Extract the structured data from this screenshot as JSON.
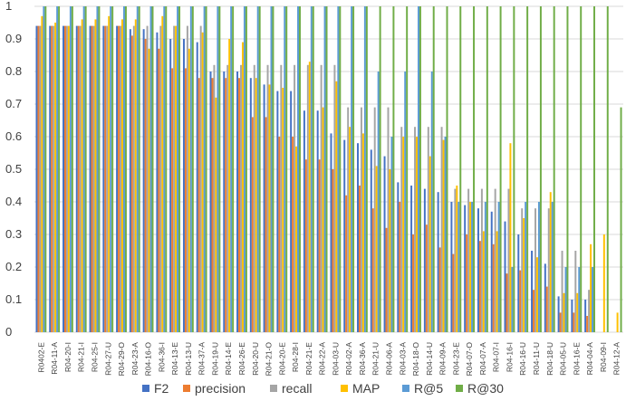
{
  "chart_data": {
    "type": "bar",
    "title": "",
    "xlabel": "",
    "ylabel": "",
    "ylim": [
      0,
      1
    ],
    "yticks": [
      "0",
      "0.1",
      "0.2",
      "0.3",
      "0.4",
      "0.5",
      "0.6",
      "0.7",
      "0.8",
      "0.9",
      "1"
    ],
    "grid": true,
    "legend_position": "bottom",
    "categories": [
      "R0402-E",
      "R04-11-A",
      "R04-20-I",
      "R04-21-I",
      "R04-25-I",
      "R04-27-U",
      "R04-29-O",
      "R04-23-A",
      "R04-16-O",
      "R04-36-I",
      "R04-13-E",
      "R04-13-U",
      "R04-37-A",
      "R04-19-U",
      "R04-14-E",
      "R04-26-E",
      "R04-20-U",
      "R04-21-O",
      "R04-20-E",
      "R04-28-I",
      "R04-21-E",
      "R04-22-A",
      "R04-03-U",
      "R04-02-A",
      "R04-36-A",
      "R04-21-U",
      "R04-06-A",
      "R04-03-A",
      "R04-18-O",
      "R04-14-U",
      "R04-09-A",
      "R04-23-E",
      "R04-07-O",
      "R04-07-A",
      "R04-07-I",
      "R04-16-I",
      "R04-16-U",
      "R04-11-U",
      "R04-18-U",
      "R04-05-U",
      "R04-16-E",
      "R04-04-A",
      "R04-09-I",
      "R04-12-A"
    ],
    "category_labels_shown": [
      "R0402-E",
      "R04-11-A",
      "R04-20-I",
      "R04-21-I",
      "R04-25-I",
      "R04-27-U",
      "R04-29-O",
      "R04-23-A",
      "R04-16-O",
      "R04-36-I",
      "R04-13-E",
      "R04-13-U",
      "R04-37-A",
      "R04-19-U",
      "R04-14-E",
      "R04-26-E",
      "R04-20-U",
      "R04-21-O",
      "R04-20-E",
      "R04-28-I",
      "R04-21-E",
      "R04-22-A",
      "R04-03-U",
      "R04-02-A",
      "R04-36-A",
      "R04-21-U",
      "R04-06-A",
      "R04-03-A",
      "R04-18-O",
      "R04-14-U",
      "R04-09-A",
      "R04-23-E",
      "R04-07-O",
      "R04-07-A",
      "R04-07-I",
      "R04-16-I",
      "R04-16-U",
      "R04-11-U",
      "R04-18-U",
      "R04-05-U",
      "R04-16-E",
      "R04-04-A",
      "R04-09-I",
      "R04-12-A"
    ],
    "series": [
      {
        "name": "F2",
        "color": "#4472c4",
        "values": [
          0.94,
          0.94,
          0.94,
          0.94,
          0.94,
          0.94,
          0.94,
          0.93,
          0.93,
          0.92,
          0.9,
          0.9,
          0.89,
          0.8,
          0.8,
          0.8,
          0.78,
          0.76,
          0.74,
          0.74,
          0.68,
          0.68,
          0.61,
          0.59,
          0.58,
          0.56,
          0.54,
          0.46,
          0.45,
          0.44,
          0.43,
          0.4,
          0.39,
          0.38,
          0.37,
          0.34,
          0.3,
          0.25,
          0.21,
          0.11,
          0.1,
          0.1,
          0.0,
          0.0
        ]
      },
      {
        "name": "precision",
        "color": "#ed7d31",
        "values": [
          0.94,
          0.94,
          0.94,
          0.94,
          0.94,
          0.94,
          0.94,
          0.91,
          0.9,
          0.87,
          0.81,
          0.81,
          0.78,
          0.78,
          0.78,
          0.78,
          0.66,
          0.66,
          0.6,
          0.6,
          0.53,
          0.53,
          0.5,
          0.42,
          0.45,
          0.38,
          0.32,
          0.4,
          0.3,
          0.33,
          0.26,
          0.24,
          0.3,
          0.28,
          0.27,
          0.18,
          0.19,
          0.13,
          0.14,
          0.06,
          0.06,
          0.05,
          0.0,
          0.0
        ]
      },
      {
        "name": "recall",
        "color": "#a5a5a5",
        "values": [
          0.94,
          0.94,
          0.94,
          0.94,
          0.94,
          0.94,
          0.94,
          0.94,
          0.94,
          0.94,
          0.94,
          0.94,
          0.94,
          0.82,
          0.82,
          0.82,
          0.82,
          0.82,
          0.82,
          0.82,
          0.82,
          0.82,
          0.82,
          0.69,
          0.69,
          0.69,
          0.69,
          0.63,
          0.63,
          0.63,
          0.63,
          0.44,
          0.44,
          0.44,
          0.44,
          0.44,
          0.38,
          0.38,
          0.38,
          0.25,
          0.25,
          0.13,
          0.0,
          0.0
        ]
      },
      {
        "name": "MAP",
        "color": "#ffc000",
        "values": [
          0.97,
          0.95,
          0.94,
          0.96,
          0.96,
          0.97,
          0.96,
          0.96,
          0.87,
          0.97,
          0.94,
          0.87,
          0.92,
          0.72,
          0.9,
          0.89,
          0.78,
          0.76,
          0.75,
          0.57,
          0.83,
          0.69,
          0.77,
          0.63,
          0.61,
          0.51,
          0.5,
          0.6,
          0.6,
          0.54,
          0.59,
          0.45,
          0.4,
          0.31,
          0.31,
          0.58,
          0.35,
          0.23,
          0.43,
          0.12,
          0.12,
          0.27,
          0.3,
          0.06
        ]
      },
      {
        "name": "R@5",
        "color": "#5b9bd5",
        "values": [
          1.0,
          1.0,
          1.0,
          1.0,
          1.0,
          1.0,
          1.0,
          1.0,
          1.0,
          1.0,
          1.0,
          1.0,
          1.0,
          1.0,
          1.0,
          1.0,
          1.0,
          1.0,
          1.0,
          1.0,
          1.0,
          1.0,
          1.0,
          1.0,
          1.0,
          0.8,
          0.6,
          0.8,
          1.0,
          0.8,
          0.6,
          0.4,
          0.4,
          0.4,
          0.4,
          0.2,
          0.4,
          0.4,
          0.4,
          0.2,
          0.2,
          0.2,
          0.0,
          0.0
        ]
      },
      {
        "name": "R@30",
        "color": "#70ad47",
        "values": [
          1.0,
          1.0,
          1.0,
          1.0,
          1.0,
          1.0,
          1.0,
          1.0,
          1.0,
          1.0,
          1.0,
          1.0,
          1.0,
          1.0,
          1.0,
          1.0,
          1.0,
          1.0,
          1.0,
          1.0,
          1.0,
          1.0,
          1.0,
          1.0,
          1.0,
          1.0,
          1.0,
          1.0,
          1.0,
          1.0,
          1.0,
          1.0,
          1.0,
          1.0,
          1.0,
          1.0,
          1.0,
          1.0,
          1.0,
          1.0,
          1.0,
          1.0,
          1.0,
          0.69
        ]
      }
    ]
  }
}
